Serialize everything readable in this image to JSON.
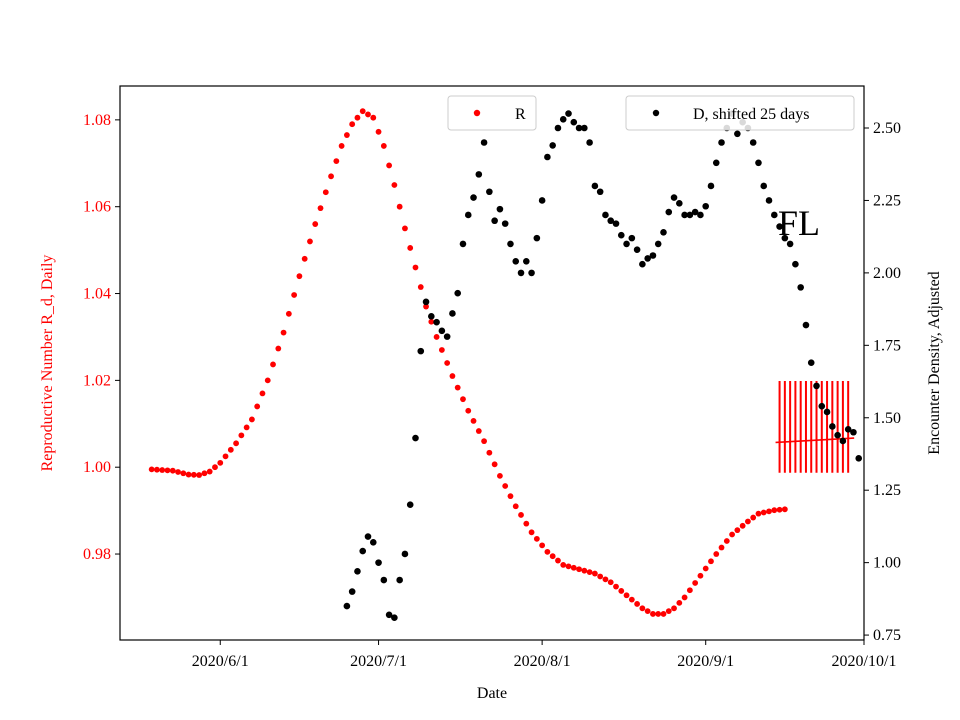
{
  "chart_data": {
    "type": "scatter",
    "x_axis": {
      "label": "Date",
      "start": "2020-05-13",
      "end": "2020-10-01",
      "tick_dates": [
        "2020-06-01",
        "2020-07-01",
        "2020-08-01",
        "2020-09-01",
        "2020-10-01"
      ],
      "tick_labels": [
        "2020/6/1",
        "2020/7/1",
        "2020/8/1",
        "2020/9/1",
        "2020/10/1"
      ]
    },
    "y_left": {
      "label": "Reproductive Number R_d, Daily",
      "color": "#ff0000",
      "ylim": [
        0.9602,
        1.0878
      ],
      "ticks": [
        0.98,
        1.0,
        1.02,
        1.04,
        1.06,
        1.08
      ],
      "tick_labels": [
        "0.98",
        "1.00",
        "1.02",
        "1.04",
        "1.06",
        "1.08"
      ]
    },
    "y_right": {
      "label": "Encounter Density, Adjusted",
      "color": "#000000",
      "ylim": [
        0.733,
        2.645
      ],
      "ticks": [
        0.75,
        1.0,
        1.25,
        1.5,
        1.75,
        2.0,
        2.25,
        2.5
      ],
      "tick_labels": [
        "0.75",
        "1.00",
        "1.25",
        "1.50",
        "1.75",
        "2.00",
        "2.25",
        "2.50"
      ]
    },
    "series": [
      {
        "name": "R",
        "axis": "left",
        "color": "#ff0000",
        "points": [
          [
            "2020-05-19",
            0.9995
          ],
          [
            "2020-05-23",
            0.9992
          ],
          [
            "2020-05-26",
            0.9983
          ],
          [
            "2020-05-28",
            0.9982
          ],
          [
            "2020-05-30",
            0.999
          ],
          [
            "2020-06-01",
            1.001
          ],
          [
            "2020-06-04",
            1.0055
          ],
          [
            "2020-06-07",
            1.011
          ],
          [
            "2020-06-10",
            1.02
          ],
          [
            "2020-06-13",
            1.031
          ],
          [
            "2020-06-16",
            1.044
          ],
          [
            "2020-06-19",
            1.056
          ],
          [
            "2020-06-22",
            1.067
          ],
          [
            "2020-06-24",
            1.074
          ],
          [
            "2020-06-26",
            1.079
          ],
          [
            "2020-06-28",
            1.082
          ],
          [
            "2020-06-30",
            1.0805
          ],
          [
            "2020-07-02",
            1.074
          ],
          [
            "2020-07-04",
            1.065
          ],
          [
            "2020-07-06",
            1.055
          ],
          [
            "2020-07-08",
            1.046
          ],
          [
            "2020-07-10",
            1.037
          ],
          [
            "2020-07-12",
            1.03
          ],
          [
            "2020-07-15",
            1.021
          ],
          [
            "2020-07-18",
            1.013
          ],
          [
            "2020-07-21",
            1.006
          ],
          [
            "2020-07-24",
            0.998
          ],
          [
            "2020-07-27",
            0.991
          ],
          [
            "2020-07-30",
            0.985
          ],
          [
            "2020-08-02",
            0.9805
          ],
          [
            "2020-08-05",
            0.9775
          ],
          [
            "2020-08-08",
            0.9765
          ],
          [
            "2020-08-11",
            0.9755
          ],
          [
            "2020-08-14",
            0.9735
          ],
          [
            "2020-08-17",
            0.9705
          ],
          [
            "2020-08-20",
            0.9675
          ],
          [
            "2020-08-22",
            0.9662
          ],
          [
            "2020-08-24",
            0.9662
          ],
          [
            "2020-08-26",
            0.9675
          ],
          [
            "2020-08-28",
            0.97
          ],
          [
            "2020-08-31",
            0.975
          ],
          [
            "2020-09-03",
            0.98
          ],
          [
            "2020-09-06",
            0.9845
          ],
          [
            "2020-09-09",
            0.9875
          ],
          [
            "2020-09-11",
            0.9893
          ],
          [
            "2020-09-14",
            0.9901
          ],
          [
            "2020-09-16",
            0.9903
          ]
        ]
      },
      {
        "name": "D, shifted 25 days",
        "axis": "right",
        "color": "#000000",
        "points": [
          [
            "2020-06-25",
            0.85
          ],
          [
            "2020-06-26",
            0.9
          ],
          [
            "2020-06-27",
            0.97
          ],
          [
            "2020-06-28",
            1.04
          ],
          [
            "2020-06-29",
            1.09
          ],
          [
            "2020-06-30",
            1.07
          ],
          [
            "2020-07-01",
            1.0
          ],
          [
            "2020-07-02",
            0.94
          ],
          [
            "2020-07-03",
            0.82
          ],
          [
            "2020-07-04",
            0.81
          ],
          [
            "2020-07-05",
            0.94
          ],
          [
            "2020-07-06",
            1.03
          ],
          [
            "2020-07-07",
            1.2
          ],
          [
            "2020-07-08",
            1.43
          ],
          [
            "2020-07-09",
            1.73
          ],
          [
            "2020-07-10",
            1.9
          ],
          [
            "2020-07-11",
            1.85
          ],
          [
            "2020-07-12",
            1.83
          ],
          [
            "2020-07-13",
            1.8
          ],
          [
            "2020-07-14",
            1.78
          ],
          [
            "2020-07-15",
            1.86
          ],
          [
            "2020-07-16",
            1.93
          ],
          [
            "2020-07-17",
            2.1
          ],
          [
            "2020-07-18",
            2.2
          ],
          [
            "2020-07-19",
            2.26
          ],
          [
            "2020-07-20",
            2.34
          ],
          [
            "2020-07-21",
            2.45
          ],
          [
            "2020-07-22",
            2.28
          ],
          [
            "2020-07-23",
            2.18
          ],
          [
            "2020-07-24",
            2.22
          ],
          [
            "2020-07-25",
            2.17
          ],
          [
            "2020-07-26",
            2.1
          ],
          [
            "2020-07-27",
            2.04
          ],
          [
            "2020-07-28",
            2.0
          ],
          [
            "2020-07-29",
            2.04
          ],
          [
            "2020-07-30",
            2.0
          ],
          [
            "2020-07-31",
            2.12
          ],
          [
            "2020-08-01",
            2.25
          ],
          [
            "2020-08-02",
            2.4
          ],
          [
            "2020-08-03",
            2.44
          ],
          [
            "2020-08-04",
            2.5
          ],
          [
            "2020-08-05",
            2.53
          ],
          [
            "2020-08-06",
            2.55
          ],
          [
            "2020-08-07",
            2.52
          ],
          [
            "2020-08-08",
            2.5
          ],
          [
            "2020-08-09",
            2.5
          ],
          [
            "2020-08-10",
            2.45
          ],
          [
            "2020-08-11",
            2.3
          ],
          [
            "2020-08-12",
            2.28
          ],
          [
            "2020-08-13",
            2.2
          ],
          [
            "2020-08-14",
            2.18
          ],
          [
            "2020-08-15",
            2.17
          ],
          [
            "2020-08-16",
            2.13
          ],
          [
            "2020-08-17",
            2.1
          ],
          [
            "2020-08-18",
            2.12
          ],
          [
            "2020-08-19",
            2.08
          ],
          [
            "2020-08-20",
            2.03
          ],
          [
            "2020-08-21",
            2.05
          ],
          [
            "2020-08-22",
            2.06
          ],
          [
            "2020-08-23",
            2.1
          ],
          [
            "2020-08-24",
            2.14
          ],
          [
            "2020-08-25",
            2.21
          ],
          [
            "2020-08-26",
            2.26
          ],
          [
            "2020-08-27",
            2.24
          ],
          [
            "2020-08-28",
            2.2
          ],
          [
            "2020-08-29",
            2.2
          ],
          [
            "2020-08-30",
            2.21
          ],
          [
            "2020-08-31",
            2.2
          ],
          [
            "2020-09-01",
            2.23
          ],
          [
            "2020-09-02",
            2.3
          ],
          [
            "2020-09-03",
            2.38
          ],
          [
            "2020-09-04",
            2.45
          ],
          [
            "2020-09-05",
            2.5
          ],
          [
            "2020-09-06",
            2.55
          ],
          [
            "2020-09-07",
            2.48
          ],
          [
            "2020-09-08",
            2.52
          ],
          [
            "2020-09-09",
            2.5
          ],
          [
            "2020-09-10",
            2.45
          ],
          [
            "2020-09-11",
            2.38
          ],
          [
            "2020-09-12",
            2.3
          ],
          [
            "2020-09-13",
            2.25
          ],
          [
            "2020-09-14",
            2.2
          ],
          [
            "2020-09-15",
            2.16
          ],
          [
            "2020-09-16",
            2.12
          ],
          [
            "2020-09-17",
            2.1
          ],
          [
            "2020-09-18",
            2.03
          ],
          [
            "2020-09-19",
            1.95
          ],
          [
            "2020-09-20",
            1.82
          ],
          [
            "2020-09-21",
            1.69
          ],
          [
            "2020-09-22",
            1.61
          ],
          [
            "2020-09-23",
            1.54
          ],
          [
            "2020-09-24",
            1.52
          ],
          [
            "2020-09-25",
            1.47
          ],
          [
            "2020-09-26",
            1.44
          ],
          [
            "2020-09-27",
            1.42
          ],
          [
            "2020-09-28",
            1.46
          ],
          [
            "2020-09-29",
            1.45
          ],
          [
            "2020-09-30",
            1.36
          ]
        ]
      }
    ],
    "error_bars": {
      "axis": "right",
      "color": "#ff0000",
      "start": "2020-09-15",
      "end": "2020-09-28",
      "center_start": 1.415,
      "center_end": 1.43,
      "upper": 1.627,
      "lower": 1.31
    },
    "legends": [
      {
        "label": "R",
        "color": "#ff0000",
        "placement": "top-center"
      },
      {
        "label": "D, shifted 25 days",
        "color": "#000000",
        "placement": "top-right"
      }
    ],
    "annotation": "FL"
  }
}
